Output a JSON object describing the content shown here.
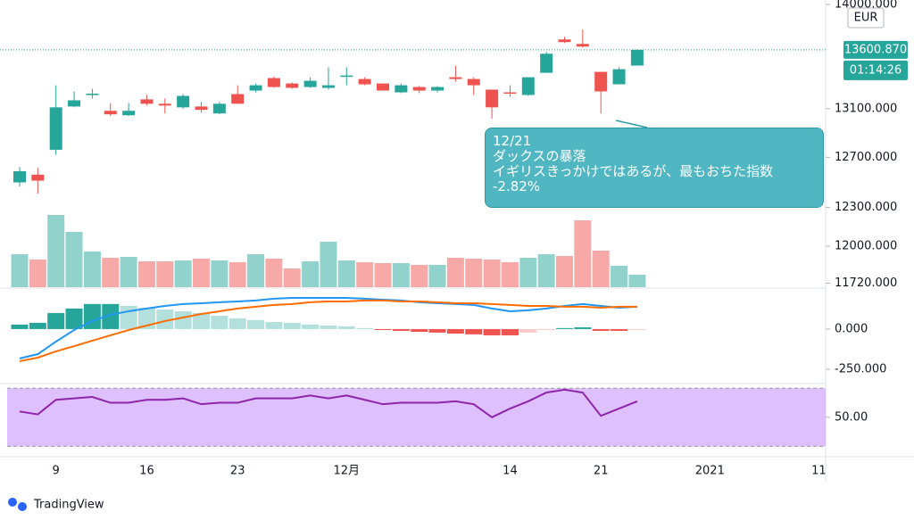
{
  "chart_data": {
    "type": "candlestick",
    "log": true,
    "currency": "EUR",
    "categories": [
      null,
      null,
      "9",
      null,
      null,
      null,
      null,
      "16",
      null,
      null,
      null,
      null,
      "23",
      null,
      null,
      null,
      null,
      null,
      "12月",
      null,
      null,
      null,
      null,
      null,
      null,
      null,
      null,
      "14",
      null,
      null,
      null,
      null,
      "21",
      null,
      null,
      null,
      null,
      null,
      "2021",
      null,
      null,
      null,
      null,
      null,
      "11"
    ],
    "open": [
      12498,
      12560,
      12761,
      13118,
      13220,
      13082,
      13045,
      13178,
      13141,
      13111,
      13118,
      13060,
      13222,
      13252,
      13358,
      13312,
      13282,
      13275,
      13373,
      13350,
      13312,
      13237,
      13282,
      13252,
      13365,
      13350,
      13260,
      13237,
      13215,
      13403,
      13691,
      13652,
      13411,
      13305,
      13465,
      null,
      null,
      null,
      null,
      null,
      null,
      null,
      null,
      null,
      null
    ],
    "high": [
      12621,
      12614,
      13297,
      13245,
      13267,
      13148,
      13148,
      13215,
      13185,
      13222,
      13156,
      13156,
      13297,
      13312,
      13373,
      13320,
      13365,
      13450,
      13450,
      13365,
      13312,
      13312,
      13290,
      13290,
      13465,
      13365,
      13260,
      13297,
      13365,
      13583,
      13714,
      13778,
      13411,
      13450,
      13606,
      null,
      null,
      null,
      null,
      null,
      null,
      null,
      null,
      null,
      null
    ],
    "low": [
      12464,
      12409,
      12719,
      13111,
      13185,
      13038,
      13038,
      13126,
      13060,
      13097,
      13068,
      13053,
      13141,
      13237,
      13275,
      13267,
      13275,
      13260,
      13297,
      13297,
      13252,
      13230,
      13230,
      13237,
      13327,
      13215,
      13016,
      13200,
      13207,
      13403,
      13660,
      13621,
      13060,
      13305,
      13465,
      null,
      null,
      null,
      null,
      null,
      null,
      null,
      null,
      null,
      null
    ],
    "close": [
      12587,
      12512,
      13111,
      13170,
      13226,
      13053,
      13082,
      13141,
      13126,
      13207,
      13090,
      13141,
      13141,
      13297,
      13282,
      13275,
      13335,
      13297,
      13380,
      13305,
      13252,
      13297,
      13252,
      13282,
      13350,
      13297,
      13111,
      13230,
      13365,
      13567,
      13668,
      13629,
      13245,
      13434,
      13600.87,
      null,
      null,
      null,
      null,
      null,
      null,
      null,
      null,
      null,
      null
    ],
    "volume": [
      37,
      31,
      81,
      62,
      40,
      33,
      34,
      29,
      29,
      30,
      32,
      30,
      28,
      37,
      32,
      21,
      29,
      51,
      30,
      28,
      27,
      27,
      25,
      25,
      33,
      32,
      31,
      28,
      33,
      37,
      35,
      75,
      41,
      24,
      14,
      null,
      null,
      null,
      null,
      null,
      null,
      null,
      null,
      null,
      null
    ],
    "up_color": "#26a69a",
    "down_color": "#ef5350",
    "ylim": [
      11690,
      14040
    ],
    "yticks": [
      {
        "value": 14000,
        "label": "14000.000"
      },
      {
        "value": 13100,
        "label": "13100.000"
      },
      {
        "value": 12700,
        "label": "12700.000"
      },
      {
        "value": 12300,
        "label": "12300.000"
      },
      {
        "value": 12000,
        "label": "12000.000"
      },
      {
        "value": 11720,
        "label": "11720.000"
      }
    ],
    "current_price": {
      "value": 13600.87,
      "label": "13600.870"
    },
    "countdown": "01:14:26",
    "annotation": {
      "lines": [
        "12/21",
        "ダックスの暴落",
        "イギリスきっかけではあるが、最もおちた指数",
        "-2.82%"
      ]
    },
    "macd": {
      "ylim": [
        -328,
        244
      ],
      "yticks": [
        {
          "value": 0,
          "label": "0.000"
        },
        {
          "value": -250,
          "label": "-250.000"
        }
      ],
      "histogram": [
        28,
        39,
        100,
        128,
        156,
        156,
        144,
        133,
        122,
        111,
        100,
        83,
        67,
        56,
        44,
        39,
        28,
        22,
        17,
        6,
        -6,
        -11,
        -17,
        -22,
        -28,
        -33,
        -39,
        -39,
        -22,
        -6,
        6,
        11,
        -11,
        -11,
        -6,
        null,
        null,
        null,
        null,
        null,
        null,
        null,
        null,
        null,
        null
      ],
      "series": [
        {
          "color": "#2196f3",
          "values": [
            -183,
            -156,
            -78,
            -6,
            50,
            89,
            111,
            128,
            144,
            156,
            161,
            167,
            172,
            178,
            189,
            194,
            194,
            194,
            194,
            189,
            183,
            178,
            167,
            161,
            156,
            150,
            128,
            111,
            117,
            128,
            144,
            156,
            144,
            133,
            139,
            null,
            null,
            null,
            null,
            null,
            null,
            null,
            null,
            null,
            null
          ]
        },
        {
          "color": "#ff6d00",
          "values": [
            -200,
            -178,
            -139,
            -106,
            -72,
            -39,
            -6,
            22,
            50,
            72,
            94,
            111,
            128,
            139,
            150,
            156,
            167,
            172,
            172,
            178,
            178,
            172,
            172,
            167,
            161,
            161,
            156,
            150,
            144,
            144,
            139,
            139,
            133,
            139,
            139,
            null,
            null,
            null,
            null,
            null,
            null,
            null,
            null,
            null,
            null
          ]
        }
      ]
    },
    "rsi": {
      "ylim": [
        29,
        72
      ],
      "yticks": [
        {
          "value": 50,
          "label": "50.00"
        }
      ],
      "bands": [
        30,
        70
      ],
      "color": "#8e24aa",
      "values": [
        54,
        52,
        62,
        63,
        64,
        60,
        60,
        62,
        62,
        63,
        59,
        60,
        60,
        63,
        63,
        63,
        65,
        63,
        65,
        62,
        59,
        60,
        60,
        60,
        61,
        59,
        50,
        56,
        61,
        67,
        69,
        67,
        51,
        56,
        61,
        null,
        null,
        null,
        null,
        null,
        null,
        null,
        null,
        null,
        null
      ]
    },
    "brand": "TradingView"
  }
}
